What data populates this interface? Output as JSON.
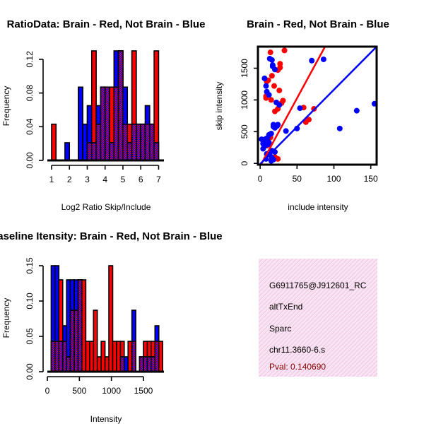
{
  "chart_data": [
    {
      "type": "bar",
      "title": "RatioData: Brain - Red, Not Brain - Blue",
      "xlabel": "Log2 Ratio Skip/Include",
      "ylabel": "Frequency",
      "xlim": [
        1,
        7.3
      ],
      "ylim": [
        0,
        0.13
      ],
      "xticks": [
        "1",
        "2",
        "3",
        "4",
        "5",
        "6",
        "7"
      ],
      "yticks": [
        "0.00",
        "0.04",
        "0.08",
        "0.12"
      ],
      "ytick_values": [
        0,
        0.04,
        0.08,
        0.12
      ],
      "bin_width": 0.25,
      "bin_starts": [
        1.0,
        1.25,
        1.5,
        1.75,
        2.0,
        2.25,
        2.5,
        2.75,
        3.0,
        3.25,
        3.5,
        3.75,
        4.0,
        4.25,
        4.5,
        4.75,
        5.0,
        5.25,
        5.5,
        5.75,
        6.0,
        6.25,
        6.5,
        6.75,
        7.0
      ],
      "series": [
        {
          "name": "Brain",
          "color": "#ff0000",
          "values": [
            0.043,
            0,
            0,
            0,
            0,
            0,
            0,
            0,
            0.021,
            0.13,
            0.043,
            0.087,
            0.087,
            0.087,
            0.087,
            0.13,
            0.043,
            0.043,
            0.13,
            0.043,
            0.043,
            0.043,
            0.043,
            0.13,
            0
          ]
        },
        {
          "name": "Not Brain",
          "color": "#0000ff",
          "values": [
            0,
            0,
            0,
            0.021,
            0,
            0,
            0.087,
            0.043,
            0.065,
            0.021,
            0.065,
            0.087,
            0.087,
            0.021,
            0.13,
            0.13,
            0.087,
            0.021,
            0.043,
            0.043,
            0.043,
            0.065,
            0.043,
            0.021,
            0
          ]
        }
      ]
    },
    {
      "type": "scatter",
      "title": "Brain - Red, Not Brain - Blue",
      "xlabel": "include intensity",
      "ylabel": "skip intensity",
      "xlim": [
        -3,
        158
      ],
      "ylim": [
        -20,
        1840
      ],
      "xticks": [
        "0",
        "50",
        "100",
        "150"
      ],
      "xtick_values": [
        0,
        50,
        100,
        150
      ],
      "yticks": [
        "0",
        "500",
        "1000",
        "1500"
      ],
      "ytick_values": [
        0,
        500,
        1000,
        1500
      ],
      "series": [
        {
          "name": "Brain",
          "color": "#ff0000",
          "points": [
            [
              14,
              1750
            ],
            [
              33,
              1780
            ],
            [
              27,
              1570
            ],
            [
              24,
              1470
            ],
            [
              27,
              1510
            ],
            [
              16,
              1380
            ],
            [
              9,
              1290
            ],
            [
              11,
              1310
            ],
            [
              19,
              1220
            ],
            [
              26,
              1150
            ],
            [
              8,
              1030
            ],
            [
              31,
              990
            ],
            [
              29,
              950
            ],
            [
              24,
              860
            ],
            [
              20,
              820
            ],
            [
              59,
              880
            ],
            [
              73,
              860
            ],
            [
              66,
              690
            ],
            [
              62,
              650
            ],
            [
              15,
              1000
            ],
            [
              8,
              1060
            ],
            [
              14,
              410
            ],
            [
              24,
              70
            ],
            [
              20,
              100
            ],
            [
              9,
              280
            ]
          ],
          "fit_line": {
            "x": [
              2,
              88
            ],
            "y": [
              0,
              1840
            ]
          }
        },
        {
          "name": "Not Brain",
          "color": "#0000ff",
          "points": [
            [
              13,
              1650
            ],
            [
              16,
              1630
            ],
            [
              17,
              1530
            ],
            [
              17,
              1550
            ],
            [
              20,
              1480
            ],
            [
              6,
              1340
            ],
            [
              8,
              1220
            ],
            [
              9,
              1130
            ],
            [
              12,
              1080
            ],
            [
              22,
              960
            ],
            [
              26,
              920
            ],
            [
              54,
              870
            ],
            [
              86,
              1640
            ],
            [
              70,
              1620
            ],
            [
              155,
              940
            ],
            [
              131,
              830
            ],
            [
              108,
              550
            ],
            [
              50,
              550
            ],
            [
              35,
              510
            ],
            [
              23,
              590
            ],
            [
              24,
              610
            ],
            [
              18,
              580
            ],
            [
              20,
              560
            ],
            [
              15,
              470
            ],
            [
              12,
              450
            ],
            [
              10,
              400
            ],
            [
              8,
              390
            ],
            [
              5,
              320
            ],
            [
              4,
              310
            ],
            [
              7,
              280
            ],
            [
              11,
              300
            ],
            [
              12,
              330
            ],
            [
              16,
              200
            ],
            [
              20,
              180
            ],
            [
              13,
              140
            ],
            [
              9,
              150
            ],
            [
              16,
              90
            ],
            [
              18,
              60
            ],
            [
              8,
              70
            ],
            [
              15,
              40
            ],
            [
              2,
              380
            ],
            [
              4,
              230
            ],
            [
              18,
              610
            ]
          ],
          "fit_line": {
            "x": [
              0,
              158
            ],
            "y": [
              -10,
              1840
            ]
          }
        }
      ]
    },
    {
      "type": "bar",
      "title": "Baseline Itensity: Brain - Red, Not Brain - Blue",
      "xlabel": "Intensity",
      "ylabel": "Frequency",
      "xlim": [
        0,
        1820
      ],
      "ylim": [
        0,
        0.155
      ],
      "xticks": [
        "0",
        "500",
        "1000",
        "1500"
      ],
      "xtick_values": [
        0,
        500,
        1000,
        1500
      ],
      "yticks": [
        "0.00",
        "0.05",
        "0.10",
        "0.15"
      ],
      "ytick_values": [
        0,
        0.05,
        0.1,
        0.15
      ],
      "bin_width": 60,
      "bin_starts": [
        60,
        120,
        180,
        240,
        300,
        360,
        420,
        480,
        540,
        600,
        660,
        720,
        780,
        840,
        900,
        960,
        1020,
        1080,
        1140,
        1200,
        1260,
        1320,
        1380,
        1440,
        1500,
        1560,
        1620,
        1680,
        1740
      ],
      "series": [
        {
          "name": "Brain",
          "color": "#ff0000",
          "values": [
            0.043,
            0.043,
            0.13,
            0.043,
            0.021,
            0.087,
            0.087,
            0.13,
            0.13,
            0.043,
            0.043,
            0.087,
            0.021,
            0.043,
            0.021,
            0.15,
            0.043,
            0.043,
            0.043,
            0,
            0.043,
            0.043,
            0,
            0.021,
            0.043,
            0.043,
            0.043,
            0.043,
            0.043
          ]
        },
        {
          "name": "Not Brain",
          "color": "#0000ff",
          "values": [
            0.15,
            0.15,
            0.043,
            0.065,
            0.13,
            0.13,
            0.13,
            0.13,
            0,
            0,
            0,
            0,
            0,
            0,
            0,
            0,
            0,
            0,
            0.021,
            0.021,
            0,
            0.087,
            0,
            0.021,
            0.021,
            0.021,
            0.021,
            0.065,
            0
          ]
        }
      ]
    }
  ],
  "info": {
    "probe_id": "G6911765@J912601_RC",
    "event_type": "altTxEnd",
    "gene": "Sparc",
    "location": "chr11.3660-6.s",
    "pval": "Pval: 0.140690",
    "pval_color": "#8b0000",
    "panel_color": "#f6dcee"
  }
}
